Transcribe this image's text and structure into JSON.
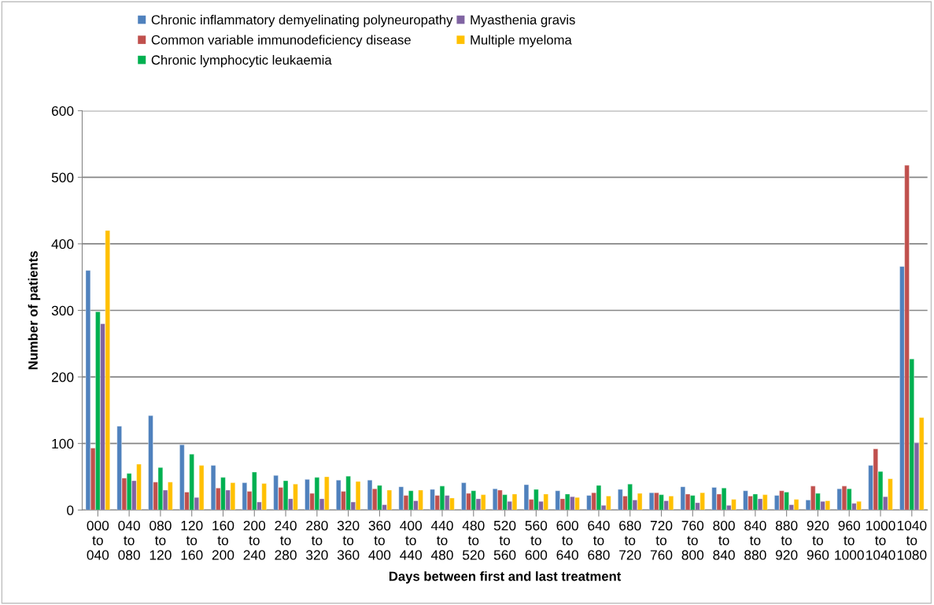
{
  "chart_data": {
    "type": "bar",
    "xlabel": "Days between first and last treatment",
    "ylabel": "Number of patients",
    "categories": [
      "000\nto\n040",
      "040\nto\n080",
      "080\nto\n120",
      "120\nto\n160",
      "160\nto\n200",
      "200\nto\n240",
      "240\nto\n280",
      "280\nto\n320",
      "320\nto\n360",
      "360\nto\n400",
      "400\nto\n440",
      "440\nto\n480",
      "480\nto\n520",
      "520\nto\n560",
      "560\nto\n600",
      "600\nto\n640",
      "640\nto\n680",
      "680\nto\n720",
      "720\nto\n760",
      "760\nto\n800",
      "800\nto\n840",
      "840\nto\n880",
      "880\nto\n920",
      "920\nto\n960",
      "960\nto\n1000",
      "1000\nto\n1040",
      "1040\nto\n1080"
    ],
    "series": [
      {
        "name": "Chronic inflammatory demyelinating polyneuropathy",
        "color": "#4f81bd",
        "values": [
          360,
          126,
          142,
          98,
          67,
          41,
          52,
          46,
          45,
          45,
          35,
          31,
          41,
          32,
          38,
          29,
          22,
          31,
          26,
          35,
          34,
          29,
          22,
          15,
          32,
          67,
          366
        ]
      },
      {
        "name": "Common variable immunodeficiency disease",
        "color": "#c0504d",
        "values": [
          93,
          48,
          42,
          27,
          33,
          28,
          34,
          25,
          28,
          32,
          22,
          22,
          25,
          30,
          16,
          17,
          26,
          21,
          26,
          24,
          24,
          21,
          29,
          36,
          36,
          92,
          518
        ]
      },
      {
        "name": "Chronic lymphocytic leukaemia",
        "color": "#00b050",
        "values": [
          298,
          55,
          64,
          84,
          49,
          57,
          44,
          49,
          51,
          37,
          29,
          36,
          29,
          23,
          31,
          24,
          37,
          39,
          23,
          22,
          33,
          24,
          27,
          25,
          32,
          58,
          227
        ]
      },
      {
        "name": "Myasthenia gravis",
        "color": "#8064a2",
        "values": [
          280,
          44,
          30,
          19,
          30,
          12,
          17,
          17,
          12,
          8,
          14,
          22,
          17,
          13,
          13,
          20,
          7,
          15,
          14,
          11,
          7,
          17,
          8,
          13,
          10,
          20,
          101
        ]
      },
      {
        "name": "Multiple myeloma",
        "color": "#ffc000",
        "values": [
          420,
          69,
          42,
          67,
          41,
          40,
          39,
          50,
          43,
          30,
          30,
          18,
          23,
          24,
          24,
          19,
          21,
          25,
          21,
          26,
          16,
          23,
          16,
          14,
          13,
          47,
          139
        ]
      }
    ],
    "ylim": [
      0,
      600
    ],
    "yticks": [
      0,
      100,
      200,
      300,
      400,
      500,
      600
    ],
    "grid": "y",
    "legend": "top left"
  }
}
